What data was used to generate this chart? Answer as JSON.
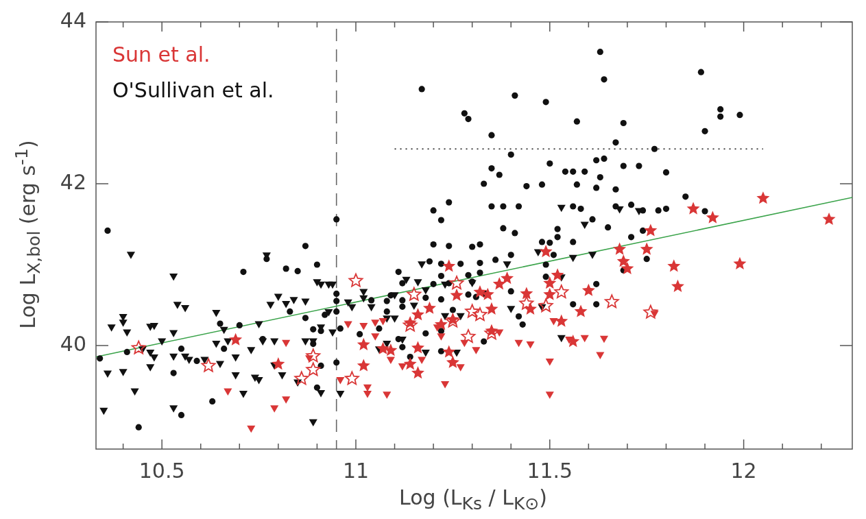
{
  "chart_data": {
    "type": "scatter",
    "xlabel": "Log (L$_{Ks}$ / L$_{K⊙}$)",
    "ylabel": "Log L$_{X,bol}$ (erg s$^{-1}$)",
    "xlim": [
      10.33,
      12.28
    ],
    "ylim": [
      38.72,
      44
    ],
    "xticks": [
      {
        "value": 10.4,
        "label": null
      },
      10.5,
      {
        "value": 10.6,
        "label": null
      },
      {
        "value": 10.7,
        "label": null
      },
      {
        "value": 10.8,
        "label": null
      },
      {
        "value": 10.9,
        "label": null
      },
      11,
      {
        "value": 11.1,
        "label": null
      },
      {
        "value": 11.2,
        "label": null
      },
      {
        "value": 11.3,
        "label": null
      },
      {
        "value": 11.4,
        "label": null
      },
      11.5,
      {
        "value": 11.6,
        "label": null
      },
      {
        "value": 11.7,
        "label": null
      },
      {
        "value": 11.8,
        "label": null
      },
      {
        "value": 11.9,
        "label": null
      },
      12,
      {
        "value": 12.1,
        "label": null
      },
      {
        "value": 12.2,
        "label": null
      }
    ],
    "yticks": [
      40,
      42,
      44
    ],
    "grid": false,
    "legend": "top left",
    "ref_lines": [
      {
        "axis": "x",
        "value": 10.95,
        "color": "#666666",
        "line_style": "dashed"
      }
    ],
    "series": [
      {
        "name": "Sun et al.",
        "color": "#d93636",
        "marker": "star",
        "x": [
          11.24,
          11.26,
          11.19,
          11.35,
          11.34,
          11.32,
          11.37,
          11.39,
          11.25,
          11.22,
          11.14,
          11.16,
          11.16,
          11.16,
          11.14,
          11.24,
          11.25,
          11.02,
          11.02,
          11.09,
          11.07,
          11.49,
          11.52,
          11.5,
          11.5,
          11.44,
          11.45,
          11.68,
          11.69,
          11.7,
          11.75,
          11.76,
          11.6,
          11.58,
          11.53,
          11.56,
          11.35,
          10.69,
          10.8,
          12.05,
          12.22,
          11.99,
          11.82,
          11.83,
          11.87,
          11.92
        ],
        "values": [
          40.98,
          40.62,
          40.46,
          40.45,
          40.63,
          40.66,
          40.76,
          40.83,
          40.32,
          40.26,
          40.28,
          40.38,
          39.97,
          39.66,
          39.77,
          39.92,
          39.79,
          39.75,
          40.01,
          39.94,
          39.96,
          41.16,
          40.87,
          40.77,
          40.63,
          40.64,
          40.45,
          41.19,
          41.04,
          40.95,
          41.19,
          41.42,
          40.68,
          40.42,
          40.3,
          40.05,
          40.18,
          40.07,
          39.77,
          41.82,
          41.56,
          41.01,
          40.98,
          40.73,
          41.69,
          41.58
        ]
      },
      {
        "color": "#d93636",
        "marker": "star_open",
        "x": [
          10.44,
          10.62,
          11.0,
          10.89,
          10.89,
          10.86,
          10.99,
          11.15,
          11.26,
          11.3,
          11.32,
          11.29,
          11.35,
          11.44,
          11.49,
          11.53,
          11.66,
          11.76,
          11.25,
          11.14
        ],
        "values": [
          39.97,
          39.75,
          40.8,
          39.87,
          39.7,
          39.59,
          39.59,
          40.63,
          40.77,
          40.42,
          40.38,
          40.11,
          40.15,
          40.52,
          40.49,
          40.66,
          40.54,
          40.41,
          40.3,
          40.25
        ]
      },
      {
        "color": "#d93636",
        "marker": "triangle",
        "x": [
          10.82,
          10.67,
          10.82,
          10.79,
          10.73,
          10.88,
          10.98,
          11.02,
          10.96,
          11.03,
          11.05,
          11.07,
          11.05,
          11.09,
          11.03,
          11.08,
          11.12,
          11.17,
          11.23,
          11.27,
          11.28,
          11.31,
          11.37,
          11.42,
          11.45,
          11.5,
          11.5,
          11.55,
          11.59,
          11.63,
          11.64,
          11.77,
          11.51,
          11.21,
          11.22
        ],
        "values": [
          40.04,
          39.44,
          39.34,
          39.23,
          38.98,
          39.85,
          40.27,
          40.25,
          39.58,
          39.49,
          40.29,
          40.31,
          40.12,
          39.83,
          39.41,
          39.4,
          39.75,
          39.83,
          39.53,
          39.74,
          40.04,
          39.95,
          40.17,
          40.04,
          40.02,
          39.81,
          39.4,
          40.08,
          40.1,
          39.89,
          40.09,
          40.4,
          40.31,
          40.23,
          40.12
        ]
      },
      {
        "name": "O'Sullivan et al.",
        "color": "#111111",
        "marker": "circle",
        "x": [
          10.36,
          10.71,
          10.77,
          10.87,
          10.82,
          10.85,
          10.9,
          10.83,
          10.65,
          10.7,
          10.95,
          10.95,
          10.95,
          10.95,
          10.96,
          10.87,
          10.89,
          10.92,
          10.91,
          10.76,
          10.89,
          10.41,
          10.34,
          10.55,
          10.66,
          10.59,
          10.95,
          10.91,
          10.53,
          10.9,
          10.63,
          10.55,
          10.44,
          11.38,
          11.41,
          11.52,
          11.52,
          11.65,
          11.74,
          11.71,
          11.2,
          11.24,
          11.3,
          11.32,
          11.48,
          11.5,
          11.56,
          11.19,
          11.22,
          11.27,
          11.32,
          11.36,
          11.4,
          11.51,
          11.49,
          11.11,
          11.22,
          11.32,
          11.12,
          11.2,
          11.24,
          11.29,
          11.3,
          11.49,
          11.09,
          11.04,
          11.08,
          11.12,
          11.18,
          11.22,
          11.29,
          11.31,
          11.12,
          11.08,
          11.25,
          11.4,
          11.62,
          11.62,
          11.56,
          11.75,
          11.69,
          11.42,
          11.43,
          11.06,
          11.01,
          11.18,
          11.22,
          11.11,
          11.12,
          11.33,
          11.22,
          11.14,
          11.63,
          11.64,
          11.89,
          11.17,
          11.41,
          11.49,
          11.94,
          11.94,
          11.99,
          11.9,
          11.28,
          11.29,
          11.35,
          11.57,
          11.69,
          11.67,
          11.35,
          11.37,
          11.4,
          11.44,
          11.48,
          11.5,
          11.54,
          11.56,
          11.59,
          11.62,
          11.64,
          11.63,
          11.69,
          11.73,
          11.8,
          11.77,
          11.67,
          11.62,
          11.57,
          11.2,
          11.22,
          11.24,
          11.35,
          11.38,
          11.42,
          11.33,
          11.56,
          11.58,
          11.67,
          11.71,
          11.74,
          11.78,
          11.8,
          11.85,
          11.9,
          11.61
        ],
        "values": [
          41.42,
          40.91,
          41.07,
          41.23,
          40.95,
          40.92,
          41.0,
          40.42,
          40.27,
          40.25,
          41.56,
          40.64,
          40.55,
          40.42,
          40.21,
          40.34,
          40.2,
          40.38,
          40.18,
          40.08,
          40.02,
          39.92,
          39.84,
          39.96,
          39.96,
          39.81,
          39.79,
          39.75,
          39.66,
          39.48,
          39.31,
          39.14,
          38.99,
          41.45,
          41.39,
          41.44,
          41.34,
          41.46,
          41.42,
          41.34,
          41.25,
          41.23,
          41.22,
          41.25,
          41.28,
          41.27,
          41.28,
          41.04,
          41.01,
          41.01,
          41.02,
          41.06,
          41.12,
          41.12,
          41.0,
          40.91,
          40.86,
          40.9,
          40.77,
          40.76,
          40.77,
          40.87,
          40.79,
          40.85,
          40.62,
          40.56,
          40.55,
          40.56,
          40.59,
          40.57,
          40.63,
          40.6,
          40.48,
          40.42,
          40.44,
          40.67,
          40.76,
          40.51,
          40.51,
          41.07,
          40.93,
          40.36,
          40.26,
          40.21,
          40.14,
          40.15,
          40.18,
          40.08,
          39.98,
          40.05,
          39.93,
          39.86,
          43.63,
          43.29,
          43.38,
          43.17,
          43.09,
          43.01,
          42.92,
          42.83,
          42.85,
          42.65,
          42.87,
          42.8,
          42.6,
          42.77,
          42.75,
          42.51,
          42.19,
          42.11,
          42.36,
          41.97,
          41.99,
          42.25,
          42.15,
          42.15,
          42.15,
          42.29,
          42.31,
          42.08,
          42.22,
          42.22,
          42.14,
          42.43,
          41.93,
          41.95,
          41.99,
          41.67,
          41.55,
          41.77,
          41.72,
          41.72,
          41.72,
          42.0,
          41.72,
          41.69,
          41.72,
          41.74,
          41.67,
          41.67,
          41.69,
          41.84,
          41.66,
          41.56
        ]
      },
      {
        "color": "#111111",
        "marker": "triangle",
        "x": [
          10.42,
          10.77,
          10.53,
          10.54,
          10.56,
          10.4,
          10.4,
          10.37,
          10.41,
          10.47,
          10.48,
          10.5,
          10.45,
          10.47,
          10.48,
          10.53,
          10.53,
          10.56,
          10.57,
          10.61,
          10.64,
          10.66,
          10.67,
          10.64,
          10.65,
          10.69,
          10.69,
          10.73,
          10.75,
          10.76,
          10.79,
          10.8,
          10.82,
          10.84,
          10.87,
          10.78,
          10.79,
          10.81,
          10.85,
          10.74,
          10.75,
          10.71,
          10.9,
          10.91,
          10.93,
          10.94,
          10.93,
          10.91,
          10.94,
          10.87,
          10.89,
          10.98,
          10.99,
          10.96,
          10.91,
          10.89,
          10.35,
          10.4,
          10.36,
          10.43,
          10.53,
          10.47,
          11.02,
          11.02,
          11.04,
          11.08,
          11.1,
          11.1,
          11.13,
          11.16,
          11.17,
          11.18,
          11.15,
          11.23,
          11.23,
          11.27,
          11.3,
          11.33,
          11.26,
          11.12,
          11.08,
          11.06,
          11.39,
          11.47,
          11.56,
          11.61,
          11.53,
          11.48,
          11.4,
          11.53,
          11.18,
          11.53,
          11.59,
          11.68,
          11.73
        ],
        "values": [
          41.13,
          41.12,
          40.86,
          40.51,
          40.47,
          40.36,
          40.29,
          40.23,
          40.17,
          40.24,
          40.25,
          40.06,
          39.96,
          39.92,
          39.86,
          40.16,
          39.87,
          39.87,
          39.83,
          39.83,
          40.41,
          40.2,
          40.06,
          40.03,
          39.78,
          39.86,
          39.64,
          39.95,
          40.27,
          40.06,
          40.06,
          40.61,
          40.52,
          40.57,
          40.55,
          40.51,
          39.76,
          39.64,
          39.55,
          39.61,
          39.58,
          39.41,
          40.79,
          40.76,
          40.76,
          40.76,
          40.42,
          40.23,
          40.17,
          40.06,
          40.06,
          40.54,
          40.48,
          39.41,
          39.42,
          39.06,
          39.2,
          39.68,
          39.66,
          39.44,
          39.23,
          39.74,
          40.59,
          40.67,
          40.48,
          40.34,
          40.34,
          40.63,
          40.82,
          40.79,
          41.01,
          40.69,
          40.5,
          40.76,
          40.37,
          40.37,
          40.78,
          40.65,
          39.92,
          40.08,
          40.03,
          39.96,
          41.01,
          41.16,
          41.09,
          41.13,
          40.85,
          40.48,
          40.46,
          40.1,
          39.92,
          41.71,
          41.5,
          41.69,
          41.67
        ]
      },
      {
        "type": "line",
        "color": "#3aa34a",
        "marker": "none",
        "line_style": "solid",
        "x": [
          10.33,
          12.28
        ],
        "values": [
          39.86,
          41.83
        ]
      },
      {
        "type": "line",
        "color": "#111111",
        "marker": "none",
        "line_style": "dotted",
        "x": [
          11.1,
          12.05
        ],
        "values": [
          42.43,
          42.43
        ]
      }
    ]
  }
}
